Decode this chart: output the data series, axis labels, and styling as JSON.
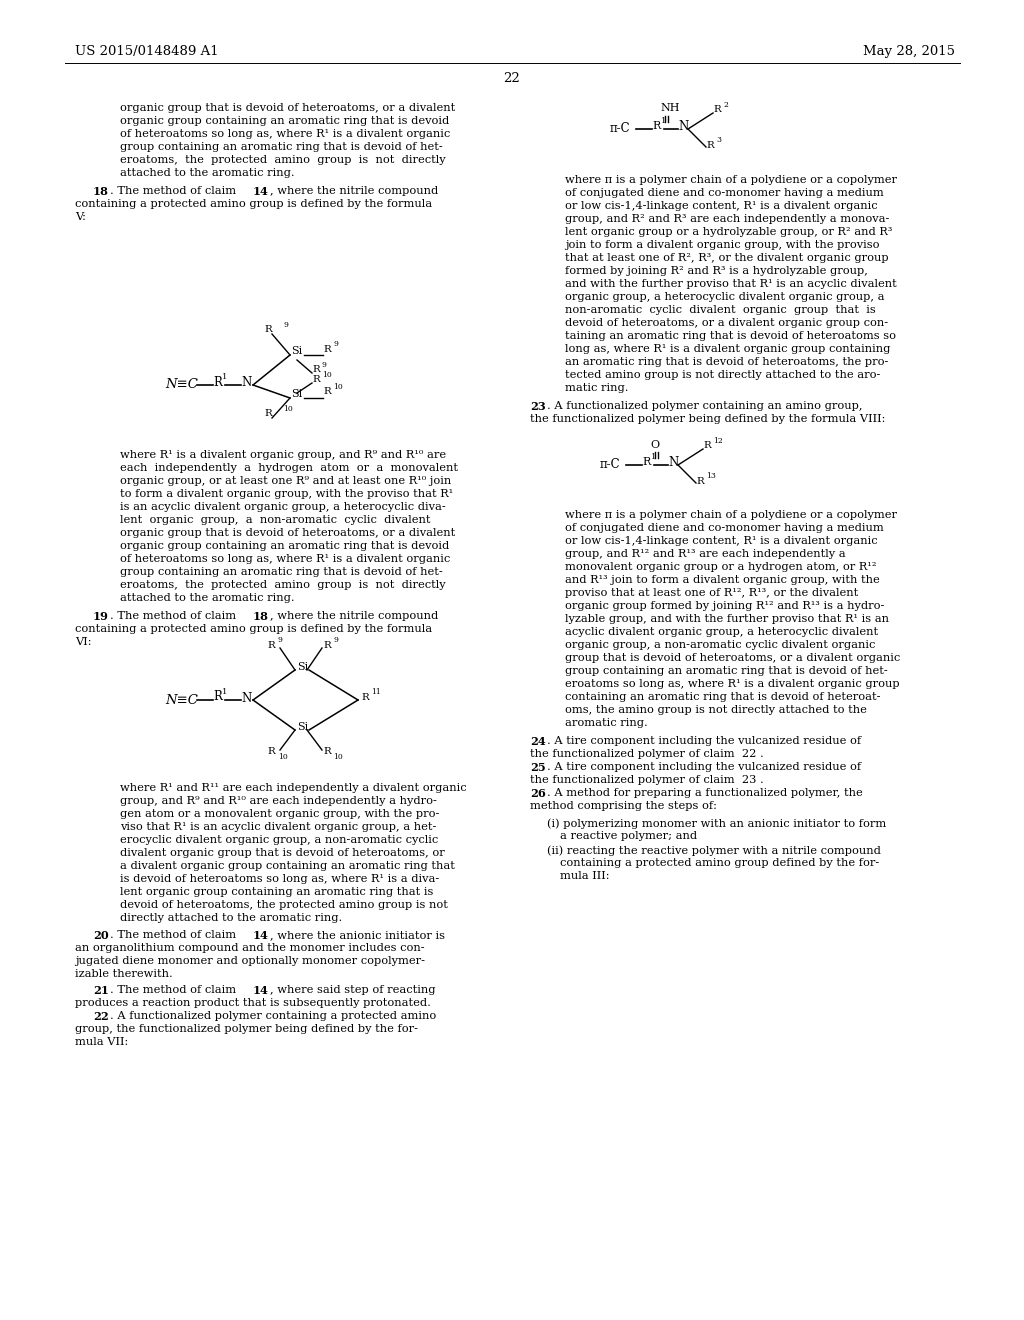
{
  "bg_color": "#ffffff",
  "header_left": "US 2015/0148489 A1",
  "header_right": "May 28, 2015",
  "page_number": "22"
}
